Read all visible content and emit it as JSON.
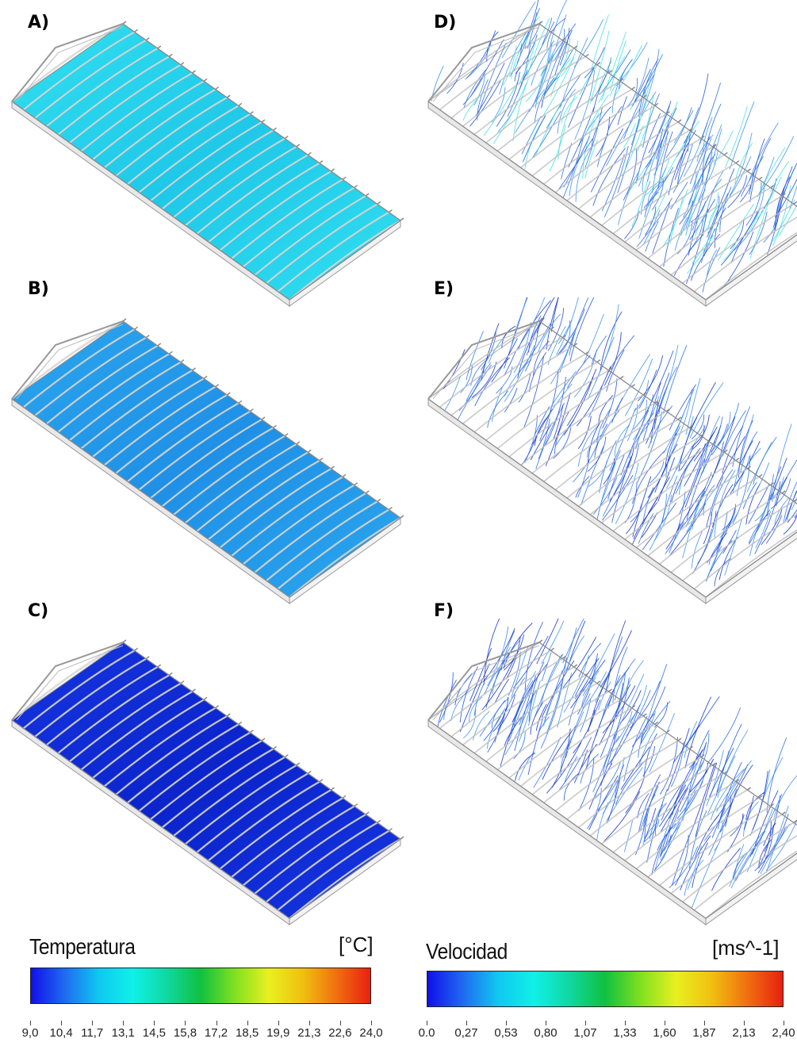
{
  "panels": [
    {
      "id": "A",
      "label": "A)",
      "type": "temperature",
      "fill": "#30dff0",
      "fill2": "#1fc8e8"
    },
    {
      "id": "B",
      "label": "B)",
      "type": "temperature",
      "fill": "#2aa6ee",
      "fill2": "#1f90e6"
    },
    {
      "id": "C",
      "label": "C)",
      "type": "temperature",
      "fill": "#1535e0",
      "fill2": "#0b24cc"
    },
    {
      "id": "D",
      "label": "D)",
      "type": "velocity",
      "line_colors": [
        "#2a6fe0",
        "#3a8ff0",
        "#40e0e0",
        "#1f50d8"
      ]
    },
    {
      "id": "E",
      "label": "E)",
      "type": "velocity",
      "line_colors": [
        "#1f4fe0",
        "#2a6fe8",
        "#3a8ff0",
        "#1030c8"
      ]
    },
    {
      "id": "F",
      "label": "F)",
      "type": "velocity",
      "line_colors": [
        "#1f4fe0",
        "#2a6fe8",
        "#1030c8",
        "#3a8ff0"
      ]
    }
  ],
  "legends": {
    "temperature": {
      "title": "Temperatura",
      "unit": "[°C]",
      "ticks": [
        "9,0",
        "10,4",
        "11,7",
        "13,1",
        "14,5",
        "15,8",
        "17,2",
        "18,5",
        "19,9",
        "21,3",
        "22,6",
        "24,0"
      ]
    },
    "velocity": {
      "title": "Velocidad",
      "unit": "[ms^-1]",
      "ticks": [
        "0.0",
        "0,27",
        "0,53",
        "0,80",
        "1,07",
        "1,33",
        "1,60",
        "1,87",
        "2,13",
        "2,40"
      ]
    }
  },
  "colormap": [
    "#1010e8",
    "#1f6bf0",
    "#10c8f0",
    "#10f0e8",
    "#10d8a0",
    "#10c040",
    "#80e020",
    "#e8f020",
    "#f0c010",
    "#f07010",
    "#e82010"
  ]
}
